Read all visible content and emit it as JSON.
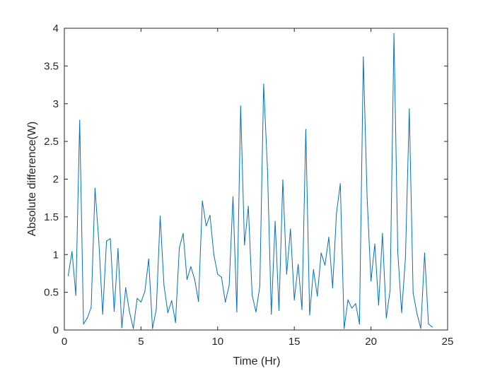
{
  "chart_data": {
    "type": "line",
    "title": "",
    "xlabel": "Time (Hr)",
    "ylabel": "Absolute difference(W)",
    "xlim": [
      0,
      25
    ],
    "ylim": [
      0,
      4
    ],
    "xticks": [
      0,
      5,
      10,
      15,
      20,
      25
    ],
    "yticks": [
      0,
      0.5,
      1,
      1.5,
      2,
      2.5,
      3,
      3.5,
      4
    ],
    "xtick_labels": [
      "0",
      "5",
      "10",
      "15",
      "20",
      "25"
    ],
    "ytick_labels": [
      "0",
      "0.5",
      "1",
      "1.5",
      "2",
      "2.5",
      "3",
      "3.5",
      "4"
    ],
    "grid": false,
    "line_color": "#0072BD",
    "series": [
      {
        "x": [
          0.25,
          0.5,
          0.75,
          1.0,
          1.25,
          1.5,
          1.75,
          2.0,
          2.25,
          2.5,
          2.75,
          3.0,
          3.25,
          3.5,
          3.75,
          4.0,
          4.25,
          4.5,
          4.75,
          5.0,
          5.25,
          5.5,
          5.75,
          6.0,
          6.25,
          6.5,
          6.75,
          7.0,
          7.25,
          7.5,
          7.75,
          8.0,
          8.25,
          8.5,
          8.75,
          9.0,
          9.25,
          9.5,
          9.75,
          10.0,
          10.25,
          10.5,
          10.75,
          11.0,
          11.25,
          11.5,
          11.75,
          12.0,
          12.25,
          12.5,
          12.75,
          13.0,
          13.25,
          13.5,
          13.75,
          14.0,
          14.25,
          14.5,
          14.75,
          15.0,
          15.25,
          15.5,
          15.75,
          16.0,
          16.25,
          16.5,
          16.75,
          17.0,
          17.25,
          17.5,
          17.75,
          18.0,
          18.25,
          18.5,
          18.75,
          19.0,
          19.25,
          19.5,
          19.75,
          20.0,
          20.25,
          20.5,
          20.75,
          21.0,
          21.25,
          21.5,
          21.75,
          22.0,
          22.25,
          22.5,
          22.75,
          23.0,
          23.25,
          23.5,
          23.75,
          24.0
        ],
        "values": [
          0.72,
          1.04,
          0.46,
          2.78,
          0.08,
          0.16,
          0.3,
          1.88,
          1.17,
          0.21,
          1.18,
          1.21,
          0.25,
          1.08,
          0.03,
          0.56,
          0.24,
          0.02,
          0.42,
          0.37,
          0.51,
          0.94,
          0.02,
          0.28,
          1.51,
          0.59,
          0.23,
          0.39,
          0.1,
          1.09,
          1.28,
          0.67,
          0.84,
          0.67,
          0.38,
          1.71,
          1.38,
          1.52,
          1.0,
          0.74,
          0.7,
          0.37,
          0.59,
          1.77,
          0.24,
          2.97,
          1.13,
          1.64,
          0.46,
          0.24,
          0.58,
          3.26,
          2.13,
          0.21,
          1.44,
          0.26,
          1.99,
          0.74,
          1.34,
          0.4,
          0.87,
          0.27,
          2.66,
          0.2,
          0.8,
          0.45,
          1.02,
          0.86,
          1.23,
          0.56,
          1.55,
          1.94,
          0.02,
          0.4,
          0.29,
          0.35,
          0.08,
          3.62,
          1.75,
          0.65,
          1.14,
          0.33,
          1.28,
          0.16,
          0.53,
          3.93,
          1.03,
          0.23,
          0.96,
          2.93,
          0.49,
          0.22,
          0.02,
          1.02,
          0.08,
          0.04
        ]
      }
    ]
  }
}
